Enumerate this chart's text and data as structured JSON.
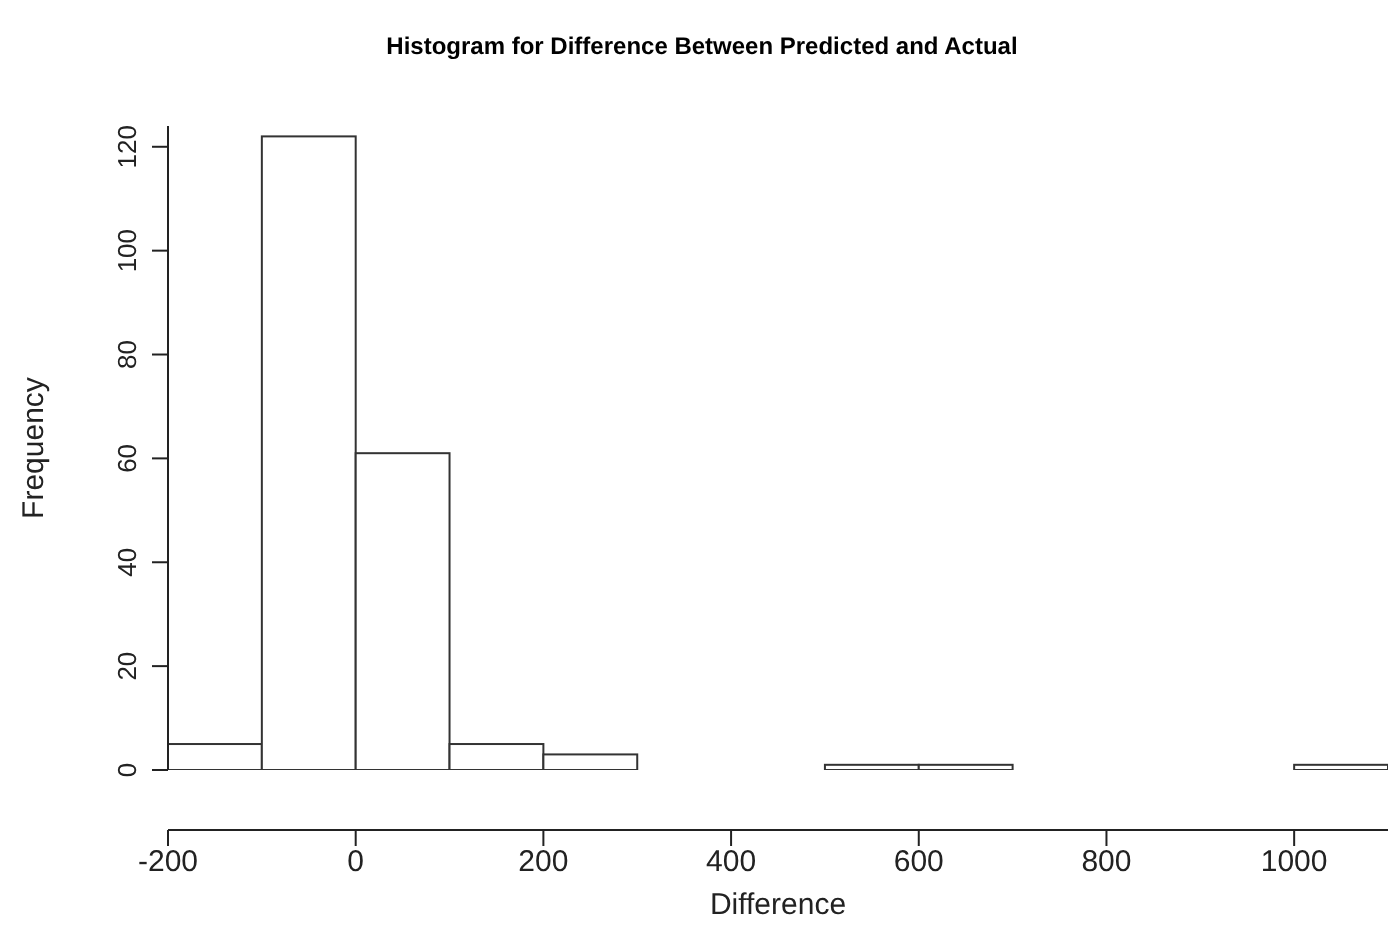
{
  "chart_data": {
    "type": "histogram",
    "title": "Histogram for Difference Between Predicted and Actual",
    "xlabel": "Difference",
    "ylabel": "Frequency",
    "bins": [
      -200,
      -100,
      0,
      100,
      200,
      300,
      400,
      500,
      600,
      700,
      800,
      900,
      1000,
      1100
    ],
    "values": [
      5,
      122,
      61,
      5,
      3,
      0,
      0,
      1,
      1,
      0,
      0,
      0,
      1
    ],
    "color": "#ffffff",
    "xlim": [
      -200,
      1100
    ],
    "xticks": [
      -200,
      0,
      200,
      400,
      600,
      800,
      1000
    ],
    "ylim": [
      0,
      124
    ],
    "yticks": [
      0,
      20,
      40,
      60,
      80,
      100,
      120
    ],
    "grid": false
  }
}
